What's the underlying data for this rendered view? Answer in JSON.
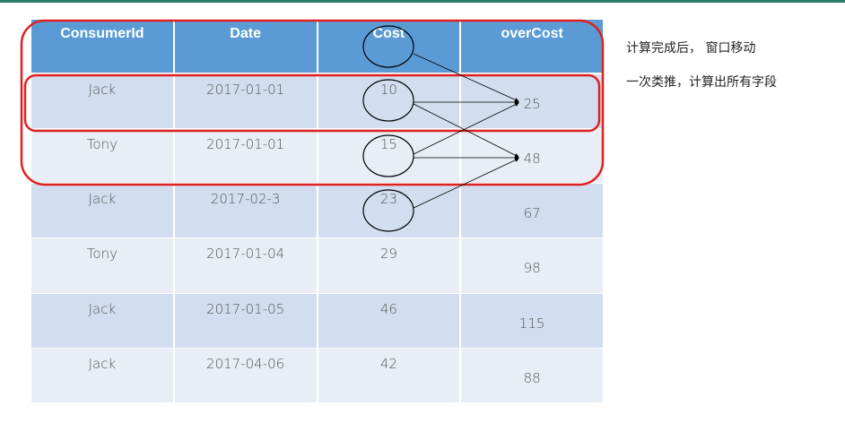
{
  "table": {
    "headers": [
      "ConsumerId",
      "Date",
      "Cost",
      "overCost"
    ],
    "rows": [
      {
        "consumer": "Jack",
        "date": "2017-01-01",
        "cost": "10",
        "over": "25"
      },
      {
        "consumer": "Tony",
        "date": "2017-01-01",
        "cost": "15",
        "over": "48"
      },
      {
        "consumer": "Jack",
        "date": "2017-02-3",
        "cost": "23",
        "over": "67"
      },
      {
        "consumer": "Tony",
        "date": "2017-01-04",
        "cost": "29",
        "over": "98"
      },
      {
        "consumer": "Jack",
        "date": "2017-01-05",
        "cost": "46",
        "over": "115"
      },
      {
        "consumer": "Jack",
        "date": "2017-04-06",
        "cost": "42",
        "over": "88"
      }
    ]
  },
  "notes": {
    "line1": "计算完成后，  窗口移动",
    "line2": "一次类推，计算出所有字段"
  },
  "colors": {
    "header_bg": "#5b9bd5",
    "row_dark": "#d2def0",
    "row_light": "#e9edf5",
    "highlight": "#e02020"
  }
}
